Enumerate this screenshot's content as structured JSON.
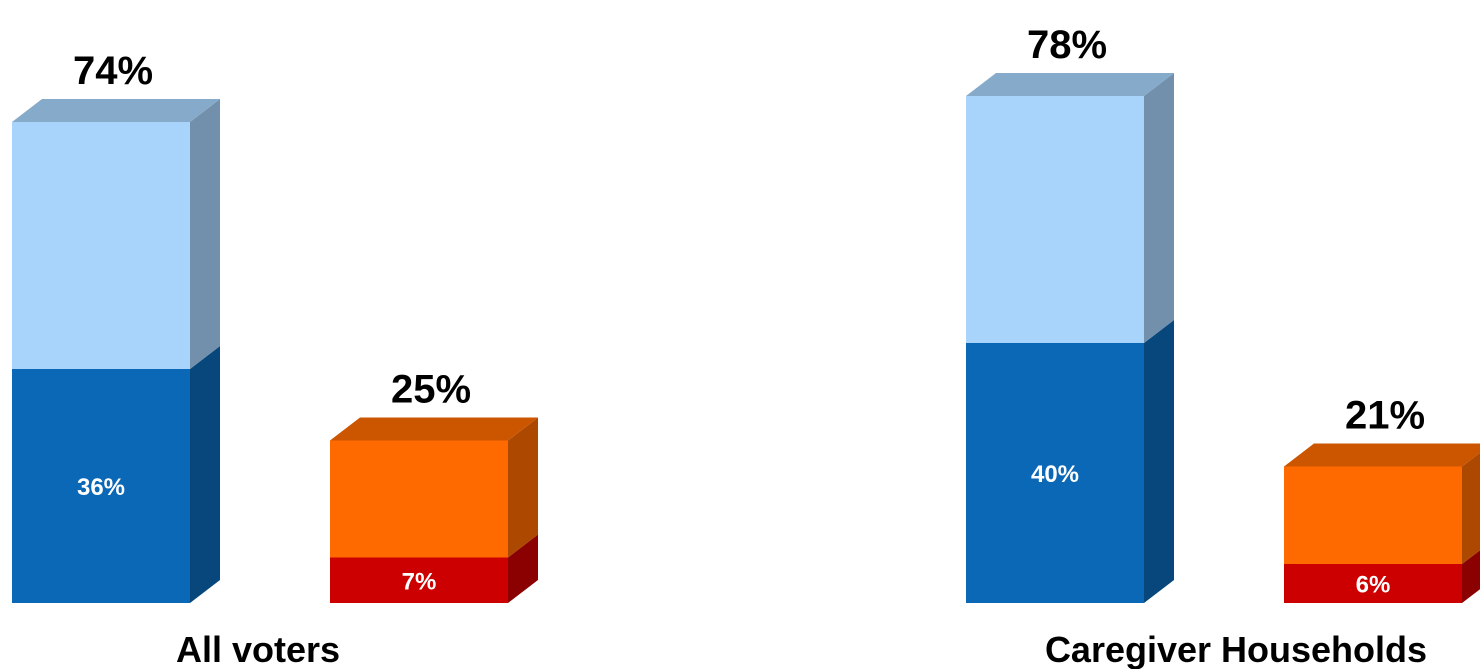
{
  "chart_data": {
    "type": "bar",
    "stacked": true,
    "style": "3d",
    "categories": [
      "All voters",
      "Caregiver Households"
    ],
    "groups": [
      {
        "label": "All voters",
        "bars": [
          {
            "total": 74,
            "total_label": "74%",
            "segments": [
              {
                "value": 36,
                "label": "36%",
                "color": "#0b68b7"
              },
              {
                "value": 38,
                "label": "",
                "color": "#a8d4fc"
              }
            ]
          },
          {
            "total": 25,
            "total_label": "25%",
            "segments": [
              {
                "value": 7,
                "label": "7%",
                "color": "#cc0000"
              },
              {
                "value": 18,
                "label": "",
                "color": "#ff6a00"
              }
            ]
          }
        ]
      },
      {
        "label": "Caregiver Households",
        "bars": [
          {
            "total": 78,
            "total_label": "78%",
            "segments": [
              {
                "value": 40,
                "label": "40%",
                "color": "#0b68b7"
              },
              {
                "value": 38,
                "label": "",
                "color": "#a8d4fc"
              }
            ]
          },
          {
            "total": 21,
            "total_label": "21%",
            "segments": [
              {
                "value": 6,
                "label": "6%",
                "color": "#cc0000"
              },
              {
                "value": 15,
                "label": "",
                "color": "#ff6a00"
              }
            ]
          }
        ]
      }
    ],
    "ylim": [
      0,
      78
    ],
    "grid": false,
    "legend": "none"
  }
}
